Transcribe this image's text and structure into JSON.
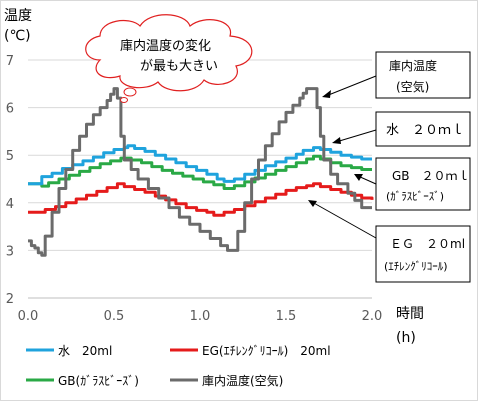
{
  "chart_data": {
    "type": "line",
    "title": "",
    "ylabel_lines": [
      "温度",
      "(℃)"
    ],
    "xlabel_lines": [
      "時間",
      "(h)"
    ],
    "xlim": [
      0,
      2.0
    ],
    "ylim": [
      2,
      7
    ],
    "x_ticks": [
      0.0,
      0.5,
      1.0,
      1.5,
      2.0
    ],
    "x_tick_labels": [
      "0.0",
      "0.5",
      "1.0",
      "1.5",
      "2.0"
    ],
    "y_ticks": [
      2,
      3,
      4,
      5,
      6,
      7
    ],
    "y_tick_labels": [
      "2",
      "3",
      "4",
      "5",
      "6",
      "7"
    ],
    "grid": "horizontal",
    "legend_position": "bottom",
    "series": [
      {
        "name": "水　20ml",
        "color": "#1fa3dd",
        "points": [
          [
            0.0,
            4.4
          ],
          [
            0.04,
            4.4
          ],
          [
            0.08,
            4.55
          ],
          [
            0.14,
            4.62
          ],
          [
            0.2,
            4.72
          ],
          [
            0.26,
            4.8
          ],
          [
            0.32,
            4.88
          ],
          [
            0.38,
            4.96
          ],
          [
            0.44,
            5.05
          ],
          [
            0.5,
            5.12
          ],
          [
            0.56,
            5.16
          ],
          [
            0.58,
            5.2
          ],
          [
            0.62,
            5.14
          ],
          [
            0.68,
            5.08
          ],
          [
            0.74,
            5.0
          ],
          [
            0.8,
            4.92
          ],
          [
            0.86,
            4.84
          ],
          [
            0.92,
            4.76
          ],
          [
            0.98,
            4.68
          ],
          [
            1.04,
            4.6
          ],
          [
            1.1,
            4.5
          ],
          [
            1.14,
            4.45
          ],
          [
            1.2,
            4.5
          ],
          [
            1.26,
            4.6
          ],
          [
            1.32,
            4.68
          ],
          [
            1.38,
            4.78
          ],
          [
            1.44,
            4.86
          ],
          [
            1.5,
            4.94
          ],
          [
            1.56,
            5.02
          ],
          [
            1.6,
            5.1
          ],
          [
            1.66,
            5.16
          ],
          [
            1.7,
            5.12
          ],
          [
            1.76,
            5.06
          ],
          [
            1.82,
            5.0
          ],
          [
            1.88,
            4.96
          ],
          [
            1.94,
            4.92
          ],
          [
            2.0,
            4.92
          ]
        ]
      },
      {
        "name": "EG(ｴﾁﾚﾝｸﾞﾘｺｰﾙ)　20ml",
        "color": "#e51b1b",
        "points": [
          [
            0.0,
            3.8
          ],
          [
            0.08,
            3.8
          ],
          [
            0.1,
            3.86
          ],
          [
            0.16,
            3.92
          ],
          [
            0.22,
            4.0
          ],
          [
            0.28,
            4.08
          ],
          [
            0.34,
            4.16
          ],
          [
            0.4,
            4.24
          ],
          [
            0.46,
            4.32
          ],
          [
            0.52,
            4.4
          ],
          [
            0.56,
            4.34
          ],
          [
            0.62,
            4.28
          ],
          [
            0.68,
            4.22
          ],
          [
            0.74,
            4.14
          ],
          [
            0.8,
            4.06
          ],
          [
            0.86,
            3.98
          ],
          [
            0.92,
            3.9
          ],
          [
            0.98,
            3.84
          ],
          [
            1.04,
            3.8
          ],
          [
            1.08,
            3.74
          ],
          [
            1.14,
            3.8
          ],
          [
            1.2,
            3.86
          ],
          [
            1.26,
            3.94
          ],
          [
            1.32,
            4.02
          ],
          [
            1.38,
            4.1
          ],
          [
            1.44,
            4.18
          ],
          [
            1.5,
            4.26
          ],
          [
            1.56,
            4.32
          ],
          [
            1.62,
            4.36
          ],
          [
            1.66,
            4.4
          ],
          [
            1.7,
            4.34
          ],
          [
            1.76,
            4.28
          ],
          [
            1.82,
            4.22
          ],
          [
            1.88,
            4.16
          ],
          [
            1.94,
            4.1
          ],
          [
            2.0,
            4.06
          ]
        ]
      },
      {
        "name": "GB(ｶﾞﾗｽﾋﾞｰｽﾞ)",
        "color": "#2aa946",
        "points": [
          [
            0.0,
            4.4
          ],
          [
            0.08,
            4.35
          ],
          [
            0.12,
            4.42
          ],
          [
            0.18,
            4.5
          ],
          [
            0.24,
            4.58
          ],
          [
            0.3,
            4.66
          ],
          [
            0.36,
            4.74
          ],
          [
            0.42,
            4.82
          ],
          [
            0.48,
            4.88
          ],
          [
            0.54,
            4.94
          ],
          [
            0.6,
            4.9
          ],
          [
            0.66,
            4.84
          ],
          [
            0.72,
            4.76
          ],
          [
            0.78,
            4.68
          ],
          [
            0.84,
            4.62
          ],
          [
            0.9,
            4.56
          ],
          [
            0.96,
            4.5
          ],
          [
            1.02,
            4.44
          ],
          [
            1.08,
            4.38
          ],
          [
            1.14,
            4.3
          ],
          [
            1.2,
            4.36
          ],
          [
            1.26,
            4.44
          ],
          [
            1.32,
            4.52
          ],
          [
            1.38,
            4.6
          ],
          [
            1.44,
            4.68
          ],
          [
            1.5,
            4.76
          ],
          [
            1.56,
            4.84
          ],
          [
            1.62,
            4.92
          ],
          [
            1.66,
            4.98
          ],
          [
            1.7,
            4.92
          ],
          [
            1.76,
            4.84
          ],
          [
            1.82,
            4.78
          ],
          [
            1.88,
            4.74
          ],
          [
            1.94,
            4.7
          ],
          [
            2.0,
            4.7
          ]
        ]
      },
      {
        "name": "庫内温度(空気)",
        "color": "#6b6b6b",
        "points": [
          [
            0.0,
            3.2
          ],
          [
            0.02,
            3.1
          ],
          [
            0.04,
            3.05
          ],
          [
            0.06,
            2.95
          ],
          [
            0.08,
            2.9
          ],
          [
            0.1,
            3.3
          ],
          [
            0.14,
            3.8
          ],
          [
            0.18,
            4.3
          ],
          [
            0.22,
            4.7
          ],
          [
            0.26,
            5.1
          ],
          [
            0.3,
            5.4
          ],
          [
            0.34,
            5.65
          ],
          [
            0.38,
            5.85
          ],
          [
            0.42,
            6.0
          ],
          [
            0.46,
            6.15
          ],
          [
            0.48,
            6.28
          ],
          [
            0.5,
            6.4
          ],
          [
            0.52,
            6.2
          ],
          [
            0.54,
            5.4
          ],
          [
            0.56,
            4.9
          ],
          [
            0.6,
            4.7
          ],
          [
            0.64,
            4.5
          ],
          [
            0.7,
            4.3
          ],
          [
            0.76,
            4.1
          ],
          [
            0.82,
            3.9
          ],
          [
            0.88,
            3.7
          ],
          [
            0.94,
            3.55
          ],
          [
            1.0,
            3.4
          ],
          [
            1.06,
            3.25
          ],
          [
            1.12,
            3.1
          ],
          [
            1.16,
            3.0
          ],
          [
            1.2,
            3.0
          ],
          [
            1.22,
            3.4
          ],
          [
            1.26,
            4.0
          ],
          [
            1.3,
            4.5
          ],
          [
            1.34,
            4.9
          ],
          [
            1.38,
            5.2
          ],
          [
            1.42,
            5.45
          ],
          [
            1.46,
            5.7
          ],
          [
            1.5,
            5.9
          ],
          [
            1.54,
            6.05
          ],
          [
            1.58,
            6.2
          ],
          [
            1.6,
            6.3
          ],
          [
            1.62,
            6.4
          ],
          [
            1.66,
            6.4
          ],
          [
            1.68,
            6.0
          ],
          [
            1.7,
            5.4
          ],
          [
            1.72,
            4.9
          ],
          [
            1.76,
            4.6
          ],
          [
            1.8,
            4.4
          ],
          [
            1.86,
            4.2
          ],
          [
            1.9,
            4.05
          ],
          [
            1.94,
            3.9
          ],
          [
            2.0,
            3.9
          ]
        ]
      }
    ],
    "annotations": {
      "cloud_text": [
        "庫内温度の変化",
        "が最も大きい"
      ],
      "box_air": [
        "庫内温度",
        "(空気)"
      ],
      "box_water": [
        "水　２０ｍｌ"
      ],
      "box_gb": [
        "GB　２０ｍｌ",
        "(ｶﾞﾗｽﾋﾞｰｽﾞ)"
      ],
      "box_eg": [
        "ＥＧ　２０ml",
        "(ｴﾁﾚﾝｸﾞﾘｺｰﾙ)"
      ]
    }
  }
}
